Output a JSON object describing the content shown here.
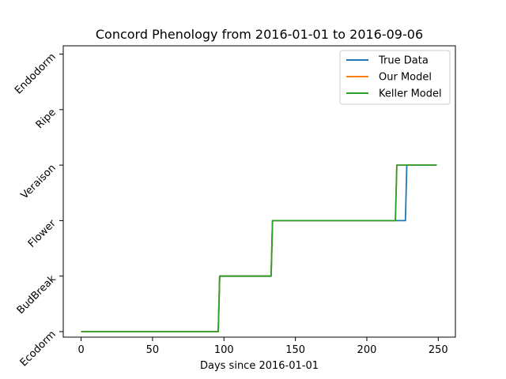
{
  "chart_data": {
    "type": "line",
    "title": "Concord Phenology from 2016-01-01 to 2016-09-06",
    "xlabel": "Days since 2016-01-01",
    "ylabel": "",
    "xlim": [
      -12.5,
      262
    ],
    "ylim": [
      -0.1,
      5.15
    ],
    "x_ticks": [
      0,
      50,
      100,
      150,
      200,
      250
    ],
    "y_ticks": [
      0,
      1,
      2,
      3,
      4,
      5
    ],
    "y_tick_labels": [
      "Ecodorm",
      "BudBreak",
      "Flower",
      "Veraison",
      "Ripe",
      "Endodorm"
    ],
    "grid": false,
    "legend_position": "top-right",
    "series": [
      {
        "name": "True Data",
        "color": "#1f77b4",
        "x": [
          0,
          96,
          97,
          133,
          134,
          227,
          228,
          249
        ],
        "y": [
          0,
          0,
          1,
          1,
          2,
          2,
          3,
          3
        ]
      },
      {
        "name": "Our Model",
        "color": "#ff7f0e",
        "x": [
          0,
          96,
          97,
          133,
          134,
          220,
          221,
          249
        ],
        "y": [
          0,
          0,
          1,
          1,
          2,
          2,
          3,
          3
        ]
      },
      {
        "name": "Keller Model",
        "color": "#2ca02c",
        "x": [
          0,
          96,
          97,
          133,
          134,
          220,
          221,
          249
        ],
        "y": [
          0,
          0,
          1,
          1,
          2,
          2,
          3,
          3
        ]
      }
    ]
  }
}
